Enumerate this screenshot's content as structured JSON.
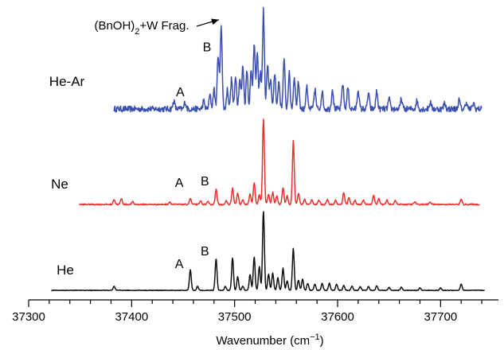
{
  "chart_data": {
    "type": "line",
    "xlabel": "Wavenumber (cm",
    "xlabel_sup": "−1",
    "xlabel_close": ")",
    "xlim": [
      37300,
      37750
    ],
    "xticks": [
      37300,
      37400,
      37500,
      37600,
      37700
    ],
    "grid": false,
    "series": [
      {
        "name": "He-Ar",
        "color": "#3a4fae",
        "x_range": [
          37383,
          37740
        ],
        "baseline": 0,
        "noise": 0.06,
        "peaks": [
          [
            37441,
            0.08
          ],
          [
            37452,
            0.07
          ],
          [
            37470,
            0.08
          ],
          [
            37476,
            0.14
          ],
          [
            37480,
            0.2
          ],
          [
            37484,
            0.55
          ],
          [
            37487,
            0.85
          ],
          [
            37493,
            0.2
          ],
          [
            37497,
            0.3
          ],
          [
            37501,
            0.34
          ],
          [
            37505,
            0.3
          ],
          [
            37508,
            0.44
          ],
          [
            37512,
            0.4
          ],
          [
            37516,
            0.38
          ],
          [
            37519,
            0.66
          ],
          [
            37522,
            0.55
          ],
          [
            37525,
            0.36
          ],
          [
            37528,
            1.0
          ],
          [
            37532,
            0.44
          ],
          [
            37535,
            0.3
          ],
          [
            37539,
            0.36
          ],
          [
            37543,
            0.28
          ],
          [
            37548,
            0.5
          ],
          [
            37553,
            0.36
          ],
          [
            37558,
            0.33
          ],
          [
            37562,
            0.27
          ],
          [
            37570,
            0.22
          ],
          [
            37578,
            0.2
          ],
          [
            37585,
            0.18
          ],
          [
            37595,
            0.2
          ],
          [
            37605,
            0.26
          ],
          [
            37610,
            0.22
          ],
          [
            37620,
            0.2
          ],
          [
            37630,
            0.16
          ],
          [
            37638,
            0.18
          ],
          [
            37650,
            0.1
          ],
          [
            37662,
            0.1
          ],
          [
            37677,
            0.08
          ],
          [
            37690,
            0.07
          ],
          [
            37704,
            0.06
          ],
          [
            37718,
            0.09
          ],
          [
            37725,
            0.07
          ],
          [
            37732,
            0.06
          ]
        ]
      },
      {
        "name": "Ne",
        "color": "#e8312e",
        "x_range": [
          37349,
          37738
        ],
        "baseline": 0,
        "noise": 0.015,
        "peaks": [
          [
            37383,
            0.06
          ],
          [
            37390,
            0.07
          ],
          [
            37401,
            0.03
          ],
          [
            37437,
            0.03
          ],
          [
            37457,
            0.07
          ],
          [
            37467,
            0.04
          ],
          [
            37474,
            0.03
          ],
          [
            37482,
            0.18
          ],
          [
            37492,
            0.04
          ],
          [
            37498,
            0.19
          ],
          [
            37503,
            0.13
          ],
          [
            37508,
            0.05
          ],
          [
            37515,
            0.12
          ],
          [
            37519,
            0.25
          ],
          [
            37524,
            0.11
          ],
          [
            37528,
            1.0
          ],
          [
            37533,
            0.12
          ],
          [
            37537,
            0.14
          ],
          [
            37541,
            0.1
          ],
          [
            37547,
            0.2
          ],
          [
            37551,
            0.1
          ],
          [
            37557,
            0.75
          ],
          [
            37562,
            0.13
          ],
          [
            37568,
            0.06
          ],
          [
            37575,
            0.06
          ],
          [
            37582,
            0.05
          ],
          [
            37590,
            0.06
          ],
          [
            37598,
            0.05
          ],
          [
            37606,
            0.14
          ],
          [
            37611,
            0.08
          ],
          [
            37617,
            0.05
          ],
          [
            37625,
            0.05
          ],
          [
            37635,
            0.11
          ],
          [
            37640,
            0.07
          ],
          [
            37648,
            0.05
          ],
          [
            37656,
            0.05
          ],
          [
            37675,
            0.03
          ],
          [
            37690,
            0.03
          ],
          [
            37720,
            0.06
          ]
        ]
      },
      {
        "name": "He",
        "color": "#111111",
        "x_range": [
          37322,
          37743
        ],
        "baseline": 0,
        "noise": 0.008,
        "peaks": [
          [
            37383,
            0.05
          ],
          [
            37457,
            0.26
          ],
          [
            37464,
            0.05
          ],
          [
            37482,
            0.4
          ],
          [
            37491,
            0.05
          ],
          [
            37498,
            0.41
          ],
          [
            37503,
            0.17
          ],
          [
            37508,
            0.05
          ],
          [
            37515,
            0.2
          ],
          [
            37519,
            0.42
          ],
          [
            37524,
            0.3
          ],
          [
            37528,
            1.0
          ],
          [
            37533,
            0.2
          ],
          [
            37537,
            0.22
          ],
          [
            37542,
            0.16
          ],
          [
            37547,
            0.28
          ],
          [
            37551,
            0.12
          ],
          [
            37557,
            0.53
          ],
          [
            37562,
            0.13
          ],
          [
            37566,
            0.14
          ],
          [
            37571,
            0.09
          ],
          [
            37578,
            0.08
          ],
          [
            37585,
            0.09
          ],
          [
            37592,
            0.09
          ],
          [
            37599,
            0.08
          ],
          [
            37606,
            0.06
          ],
          [
            37614,
            0.05
          ],
          [
            37622,
            0.05
          ],
          [
            37630,
            0.05
          ],
          [
            37638,
            0.06
          ],
          [
            37650,
            0.04
          ],
          [
            37662,
            0.04
          ],
          [
            37680,
            0.03
          ],
          [
            37700,
            0.03
          ],
          [
            37720,
            0.08
          ]
        ]
      }
    ],
    "annotations": [
      {
        "series": "He-Ar",
        "label": "A",
        "x": 37458
      },
      {
        "series": "He-Ar",
        "label": "B",
        "x": 37484
      },
      {
        "series": "Ne",
        "label": "A",
        "x": 37457
      },
      {
        "series": "Ne",
        "label": "B",
        "x": 37482
      },
      {
        "series": "He",
        "label": "A",
        "x": 37457
      },
      {
        "series": "He",
        "label": "B",
        "x": 37482
      },
      {
        "series": "He-Ar",
        "label_main": "(BnOH)",
        "label_sub": "2",
        "label_rest": "+W Frag.",
        "x": 37487,
        "arrow": true
      }
    ]
  }
}
